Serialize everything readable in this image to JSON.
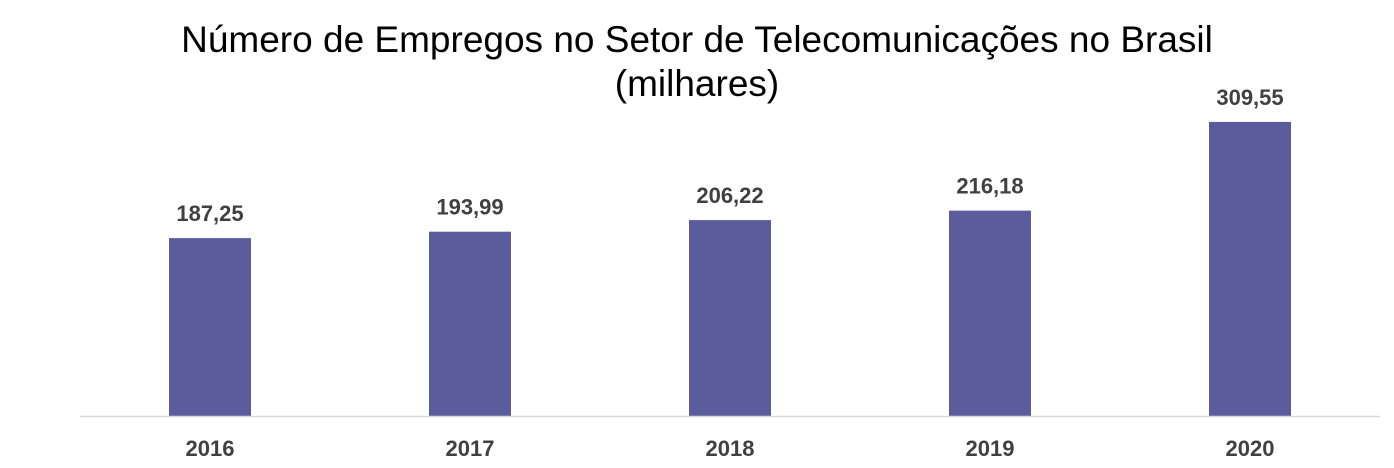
{
  "chart_data": {
    "type": "bar",
    "title": "Número de Empregos no Setor de Telecomunicações no Brasil",
    "subtitle": "(milhares)",
    "categories": [
      "2016",
      "2017",
      "2018",
      "2019",
      "2020"
    ],
    "values": [
      187.25,
      193.99,
      206.22,
      216.18,
      309.55
    ],
    "value_labels": [
      "187,25",
      "193,99",
      "206,22",
      "216,18",
      "309,55"
    ],
    "xlabel": "",
    "ylabel": "",
    "ylim": [
      0,
      350
    ],
    "grid": false,
    "legend": "none",
    "bar_color": "#5b5c9c",
    "axis_color": "#d9d9d9",
    "label_color": "#404040"
  }
}
